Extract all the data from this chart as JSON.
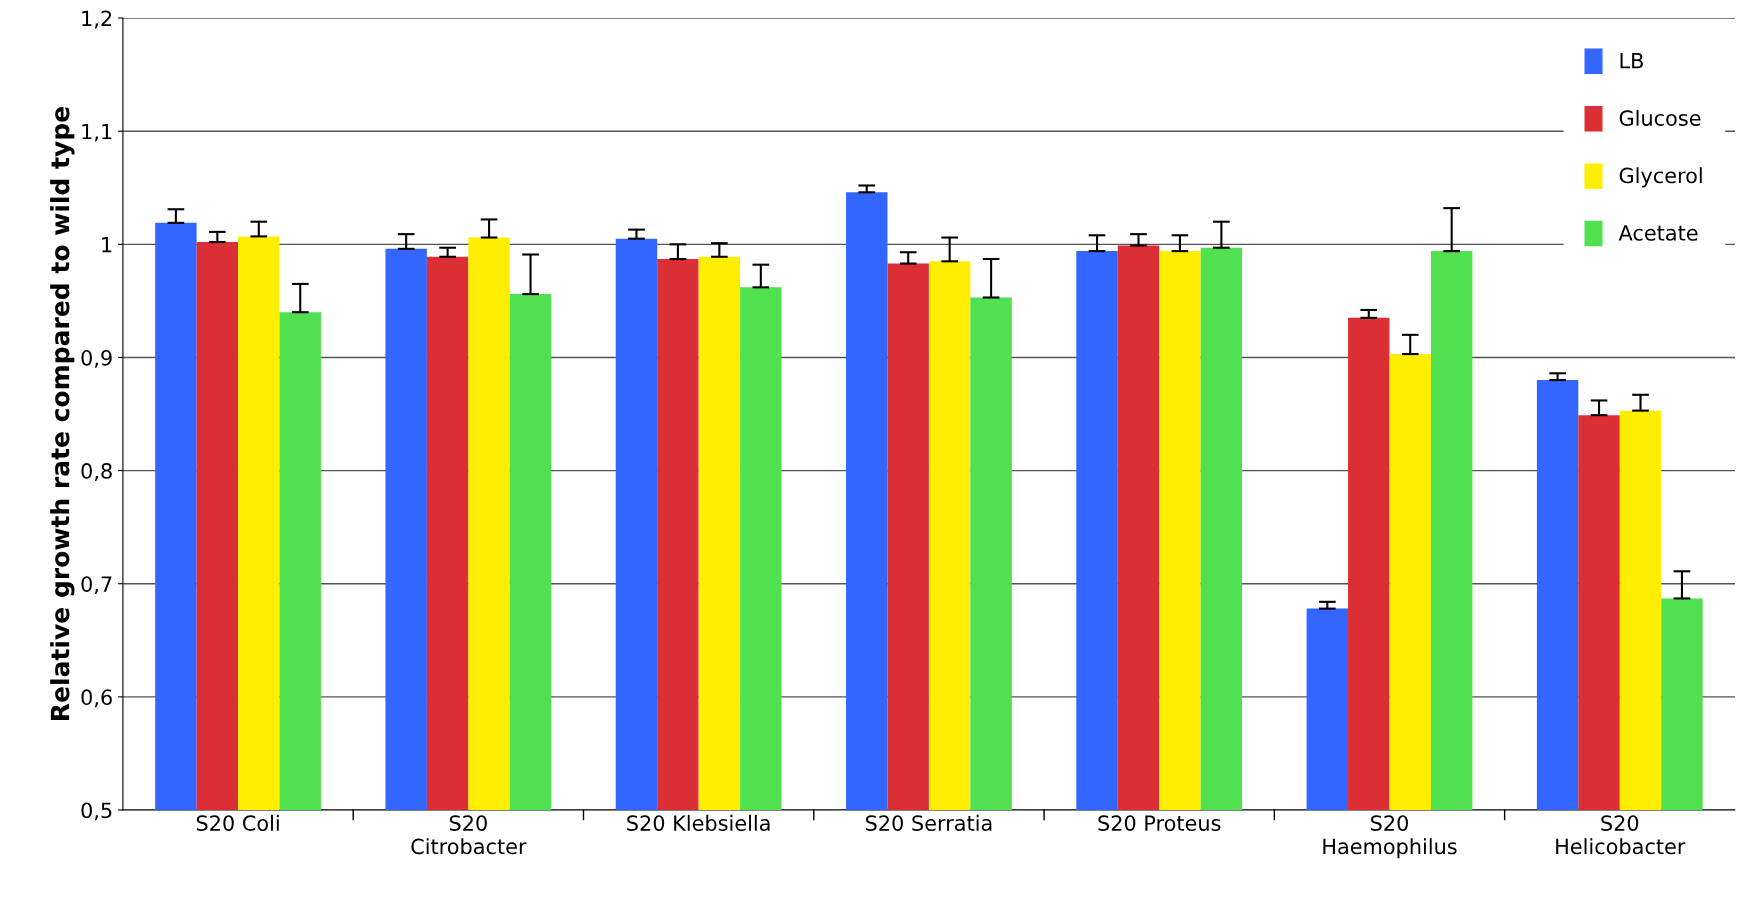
{
  "chart_data": {
    "type": "bar",
    "ylabel": "Relative growth rate compared to wild type",
    "categories": [
      "S20 Coli",
      "S20\nCitrobacter",
      "S20 Klebsiella",
      "S20 Serratia",
      "S20 Proteus",
      "S20\nHaemophilus",
      "S20\nHelicobacter"
    ],
    "series": [
      {
        "name": "LB",
        "color": "#3366ff",
        "values": [
          1.019,
          0.996,
          1.005,
          1.046,
          0.994,
          0.678,
          0.88
        ],
        "errors": [
          [
            1.019,
            1.031
          ],
          [
            0.996,
            1.009
          ],
          [
            1.005,
            1.013
          ],
          [
            1.046,
            1.052
          ],
          [
            0.994,
            1.008
          ],
          [
            0.678,
            0.684
          ],
          [
            0.88,
            0.886
          ]
        ]
      },
      {
        "name": "Glucose",
        "color": "#dc2f35",
        "values": [
          1.002,
          0.989,
          0.987,
          0.983,
          0.999,
          0.935,
          0.849
        ],
        "errors": [
          [
            1.002,
            1.011
          ],
          [
            0.989,
            0.997
          ],
          [
            0.987,
            1.0
          ],
          [
            0.983,
            0.993
          ],
          [
            0.999,
            1.009
          ],
          [
            0.935,
            0.942
          ],
          [
            0.849,
            0.862
          ]
        ]
      },
      {
        "name": "Glycerol",
        "color": "#ffee00",
        "values": [
          1.007,
          1.006,
          0.989,
          0.985,
          0.994,
          0.903,
          0.853
        ],
        "errors": [
          [
            1.007,
            1.02
          ],
          [
            1.006,
            1.022
          ],
          [
            0.989,
            1.001
          ],
          [
            0.985,
            1.006
          ],
          [
            0.994,
            1.008
          ],
          [
            0.903,
            0.92
          ],
          [
            0.853,
            0.867
          ]
        ]
      },
      {
        "name": "Acetate",
        "color": "#50e050",
        "values": [
          0.94,
          0.956,
          0.962,
          0.953,
          0.997,
          0.994,
          0.687
        ],
        "errors": [
          [
            0.94,
            0.965
          ],
          [
            0.956,
            0.991
          ],
          [
            0.962,
            0.982
          ],
          [
            0.953,
            0.987
          ],
          [
            0.997,
            1.02
          ],
          [
            0.994,
            1.032
          ],
          [
            0.687,
            0.711
          ]
        ]
      }
    ],
    "ylim": [
      0.5,
      1.2
    ],
    "yticks": [
      {
        "value": 0.5,
        "label": "0,5"
      },
      {
        "value": 0.6,
        "label": "0,6"
      },
      {
        "value": 0.7,
        "label": "0,7"
      },
      {
        "value": 0.8,
        "label": "0,8"
      },
      {
        "value": 0.9,
        "label": "0,9"
      },
      1,
      {
        "value": 1.1,
        "label": "1,1"
      },
      {
        "value": 1.2,
        "label": "1,2"
      }
    ],
    "grid": "y",
    "legend": "top right"
  }
}
